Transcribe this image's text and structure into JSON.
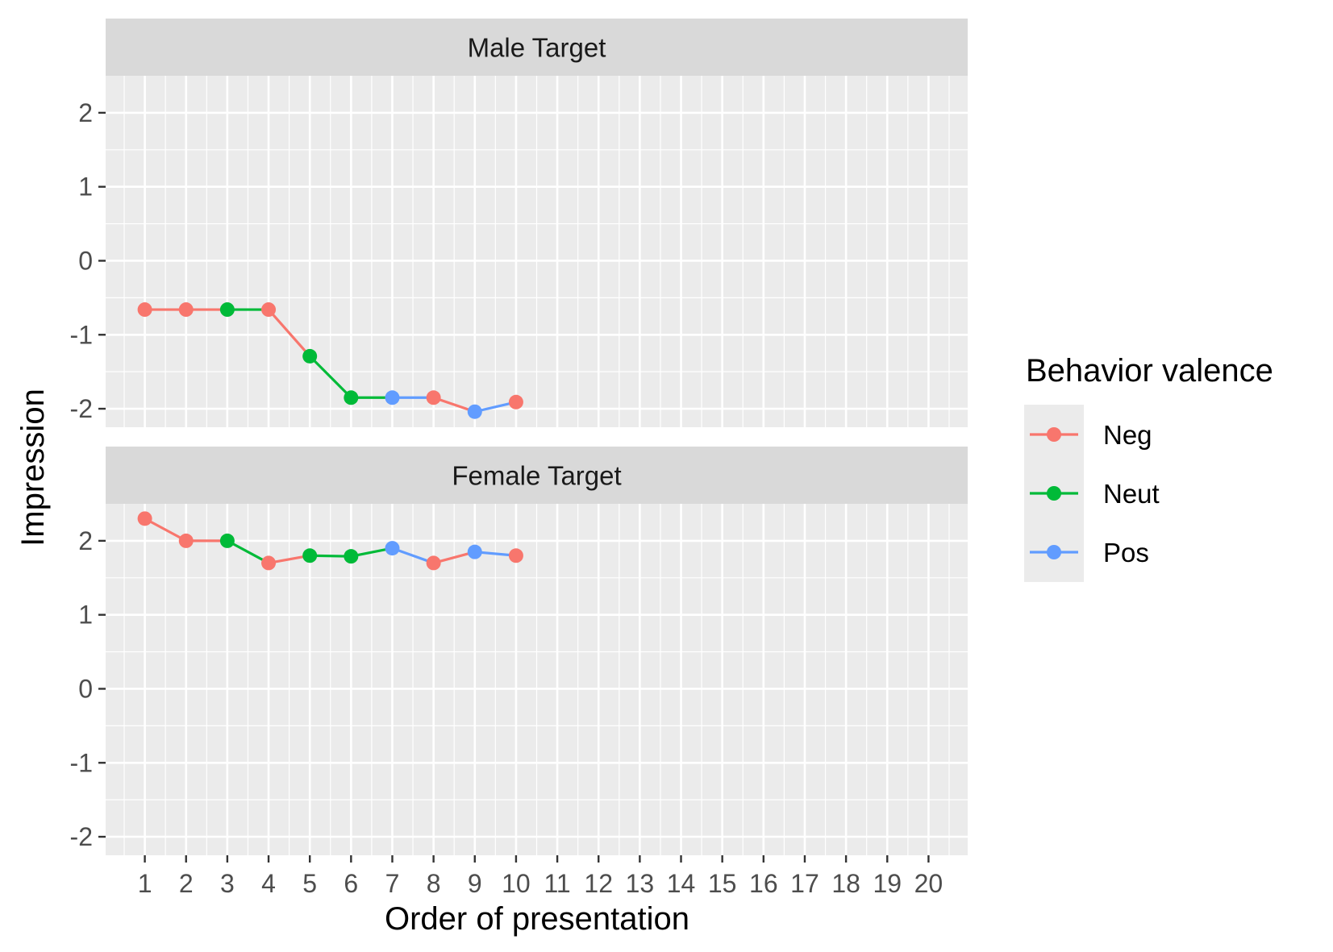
{
  "chart_data": {
    "type": "line",
    "xlabel": "Order of presentation",
    "ylabel": "Impression",
    "x_ticks": [
      1,
      2,
      3,
      4,
      5,
      6,
      7,
      8,
      9,
      10,
      11,
      12,
      13,
      14,
      15,
      16,
      17,
      18,
      19,
      20
    ],
    "xlim": [
      0.05,
      20.95
    ],
    "y_ticks": [
      2,
      1,
      0,
      -1,
      -2
    ],
    "y_tick_labels": [
      "2",
      "1",
      "0",
      "-1",
      "-2"
    ],
    "grid": true,
    "legend": {
      "title": "Behavior valence",
      "position": "right",
      "entries": [
        {
          "name": "Neg",
          "color": "#F8766D"
        },
        {
          "name": "Neut",
          "color": "#00BA38"
        },
        {
          "name": "Pos",
          "color": "#619CFF"
        }
      ]
    },
    "panels": [
      {
        "title": "Male Target",
        "ylim": [
          -2.25,
          2.5
        ],
        "points": [
          {
            "x": 1,
            "y": -0.66,
            "valence": "Neg"
          },
          {
            "x": 2,
            "y": -0.66,
            "valence": "Neg"
          },
          {
            "x": 3,
            "y": -0.66,
            "valence": "Neut"
          },
          {
            "x": 4,
            "y": -0.66,
            "valence": "Neg"
          },
          {
            "x": 5,
            "y": -1.29,
            "valence": "Neut"
          },
          {
            "x": 6,
            "y": -1.85,
            "valence": "Neut"
          },
          {
            "x": 7,
            "y": -1.85,
            "valence": "Pos"
          },
          {
            "x": 8,
            "y": -1.85,
            "valence": "Neg"
          },
          {
            "x": 9,
            "y": -2.04,
            "valence": "Pos"
          },
          {
            "x": 10,
            "y": -1.91,
            "valence": "Neg"
          }
        ]
      },
      {
        "title": "Female Target",
        "ylim": [
          -2.25,
          2.5
        ],
        "points": [
          {
            "x": 1,
            "y": 2.3,
            "valence": "Neg"
          },
          {
            "x": 2,
            "y": 2.0,
            "valence": "Neg"
          },
          {
            "x": 3,
            "y": 2.0,
            "valence": "Neut"
          },
          {
            "x": 4,
            "y": 1.7,
            "valence": "Neg"
          },
          {
            "x": 5,
            "y": 1.8,
            "valence": "Neut"
          },
          {
            "x": 6,
            "y": 1.79,
            "valence": "Neut"
          },
          {
            "x": 7,
            "y": 1.9,
            "valence": "Pos"
          },
          {
            "x": 8,
            "y": 1.7,
            "valence": "Neg"
          },
          {
            "x": 9,
            "y": 1.85,
            "valence": "Pos"
          },
          {
            "x": 10,
            "y": 1.8,
            "valence": "Neg"
          }
        ]
      }
    ]
  }
}
